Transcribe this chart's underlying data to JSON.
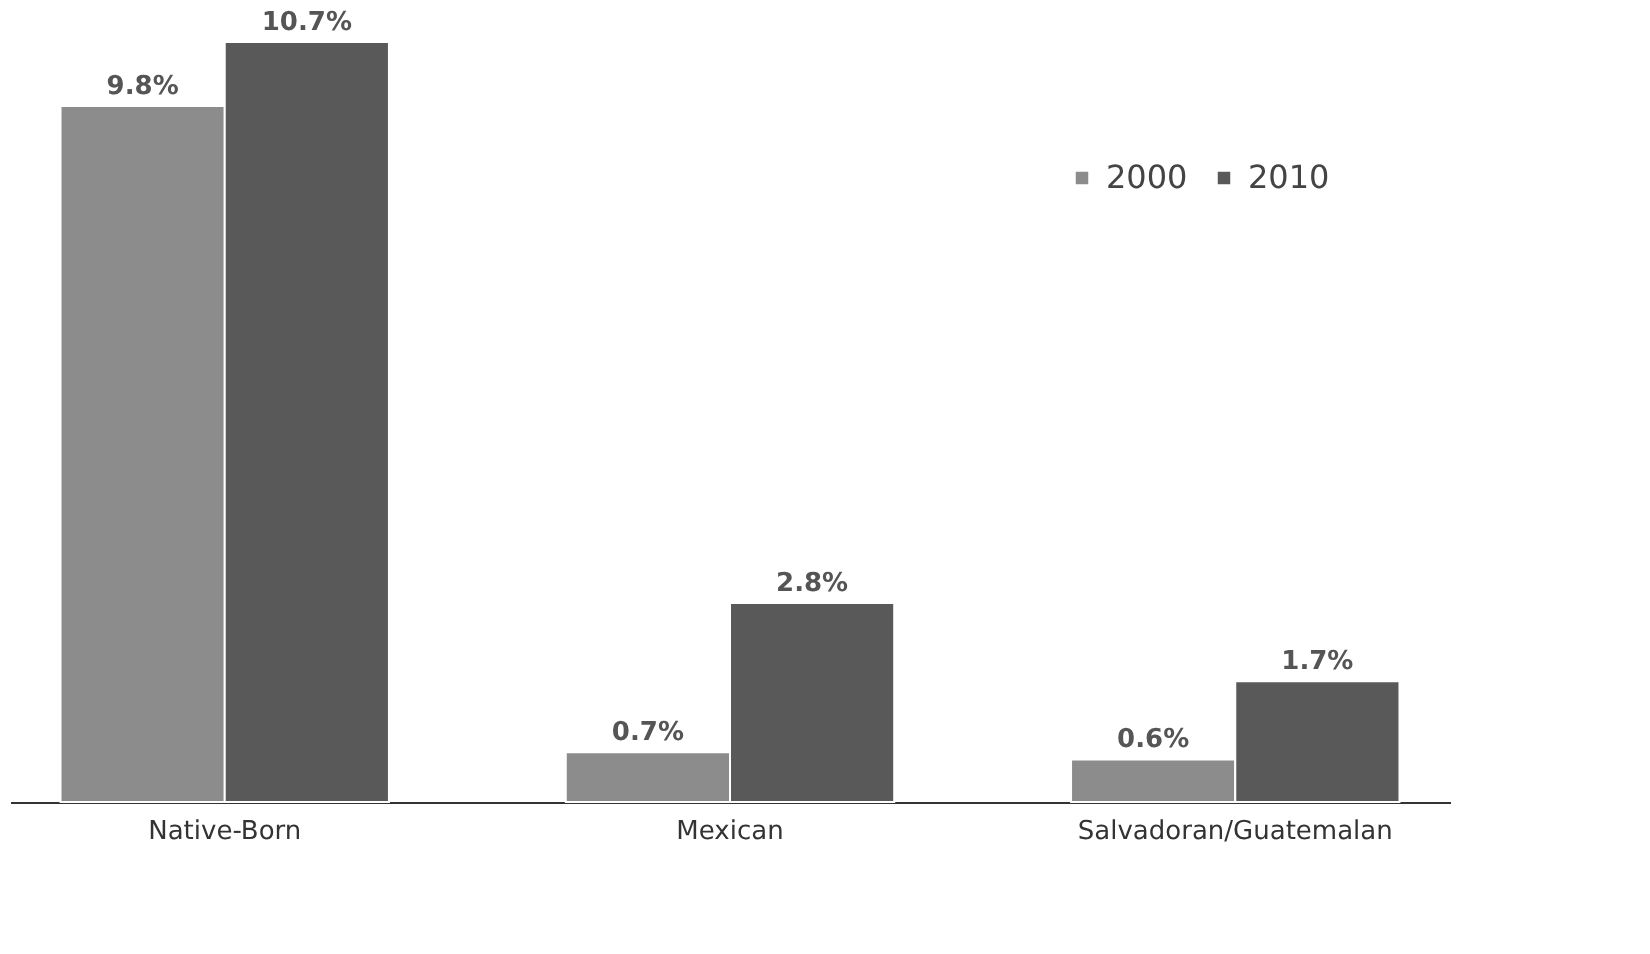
{
  "chart_data": {
    "type": "bar",
    "categories": [
      "Native-Born",
      "Mexican",
      "Salvadoran/Guatemalan"
    ],
    "series": [
      {
        "name": "2000",
        "color": "#8c8c8c",
        "values": [
          9.8,
          0.7,
          0.6
        ],
        "value_labels": [
          "9.8%",
          "0.7%",
          "0.6%"
        ]
      },
      {
        "name": "2010",
        "color": "#595959",
        "values": [
          10.7,
          2.8,
          1.7
        ],
        "value_labels": [
          "10.7%",
          "2.8%",
          "1.7%"
        ]
      }
    ],
    "legend": "top right"
  }
}
